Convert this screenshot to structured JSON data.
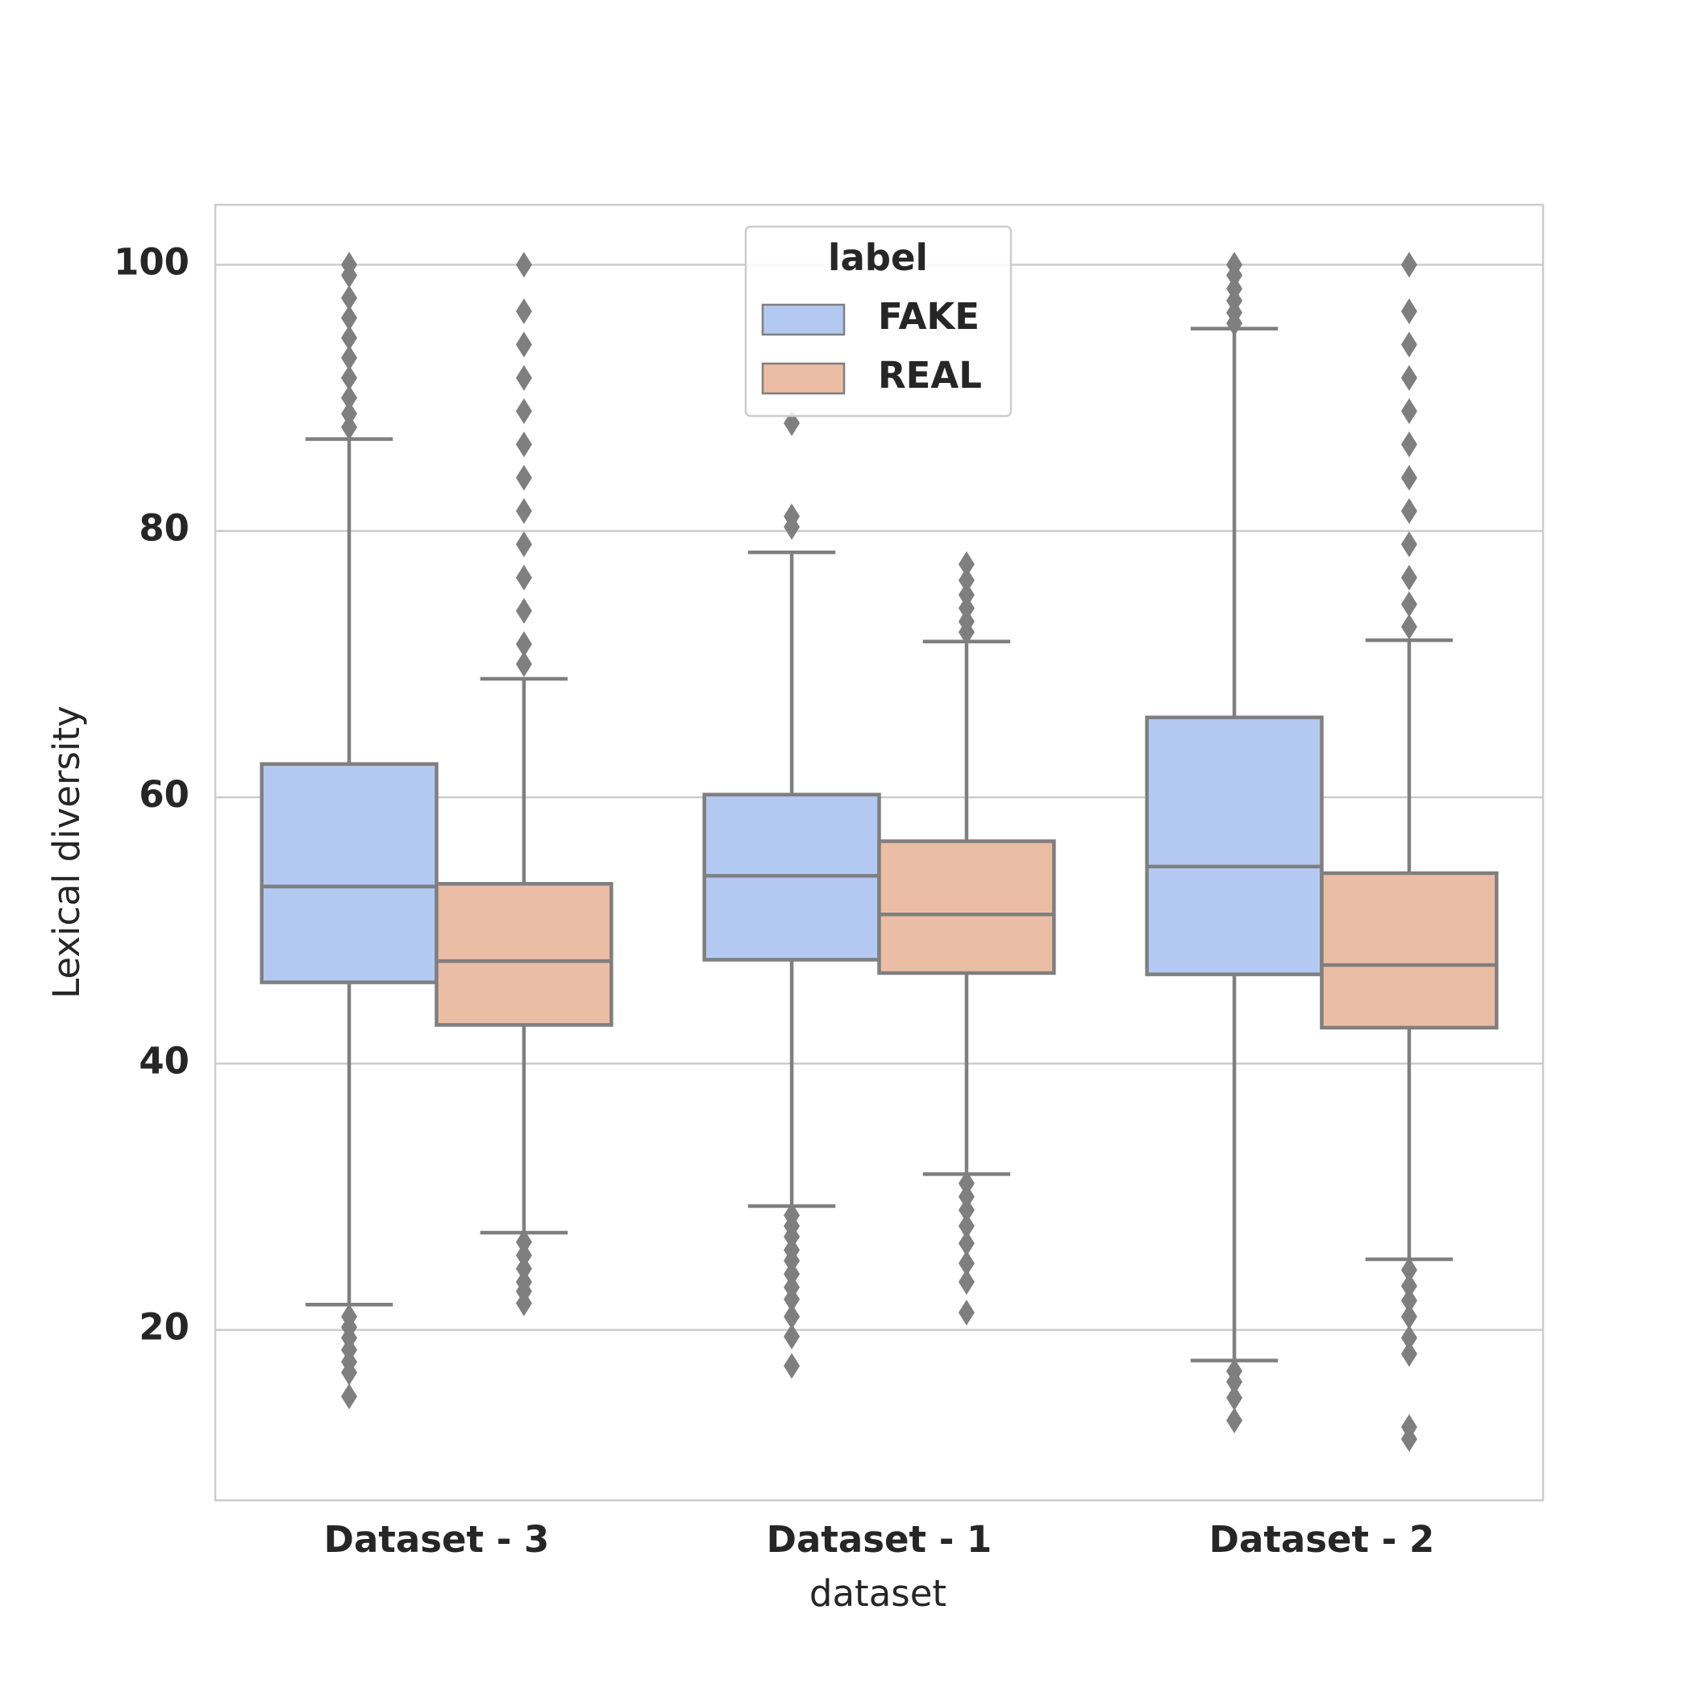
{
  "chart_data": {
    "type": "box",
    "x_label": "dataset",
    "y_label": "Lexical diversity",
    "categories": [
      "Dataset - 3",
      "Dataset - 1",
      "Dataset - 2"
    ],
    "legend_title": "label",
    "legend_position": "upper center",
    "ylim": [
      7.2,
      104.5
    ],
    "yticks": [
      20,
      40,
      60,
      80,
      100
    ],
    "grid": true,
    "edge_color": "#7f7f7f",
    "flier_color": "#7f7f7f",
    "series": [
      {
        "name": "FAKE",
        "color": "#b3c9f2",
        "boxes": [
          {
            "whislo": 21.9,
            "q1": 46.1,
            "med": 53.3,
            "q3": 62.5,
            "whishi": 86.9,
            "fliers": [
              100,
              99.2,
              97.5,
              96,
              94.5,
              93,
              91.5,
              90,
              88.8,
              87.8,
              21,
              20.2,
              19.4,
              18.5,
              17.6,
              16.8,
              15
            ]
          },
          {
            "whislo": 29.3,
            "q1": 47.8,
            "med": 54.1,
            "q3": 60.2,
            "whishi": 78.4,
            "fliers": [
              88.1,
              81.1,
              80.3,
              28.6,
              27.8,
              27,
              26,
              25.2,
              24.2,
              23.2,
              22.3,
              21,
              19.5,
              17.3
            ]
          },
          {
            "whislo": 17.7,
            "q1": 46.7,
            "med": 54.8,
            "q3": 66.0,
            "whishi": 95.2,
            "fliers": [
              100,
              99.2,
              98.2,
              97.3,
              96.4,
              95.6,
              16.9,
              16.1,
              14.9,
              13.2
            ]
          }
        ]
      },
      {
        "name": "REAL",
        "color": "#ecbda5",
        "boxes": [
          {
            "whislo": 27.3,
            "q1": 42.9,
            "med": 47.7,
            "q3": 53.5,
            "whishi": 68.9,
            "fliers": [
              100,
              96.5,
              94,
              91.5,
              89,
              86.5,
              84,
              81.5,
              79,
              76.5,
              74,
              71.5,
              70,
              26.6,
              25.6,
              24.6,
              23.6,
              22.9,
              22
            ]
          },
          {
            "whislo": 31.7,
            "q1": 46.8,
            "med": 51.2,
            "q3": 56.7,
            "whishi": 71.7,
            "fliers": [
              77.5,
              76.3,
              75.2,
              74.2,
              73.2,
              72.4,
              31,
              30,
              29,
              27.8,
              26.5,
              25,
              23.6,
              21.3
            ]
          },
          {
            "whislo": 25.3,
            "q1": 42.7,
            "med": 47.4,
            "q3": 54.3,
            "whishi": 71.8,
            "fliers": [
              100,
              96.5,
              94,
              91.5,
              89,
              86.5,
              84,
              81.5,
              79,
              76.5,
              74.5,
              72.8,
              24.5,
              23.3,
              22.2,
              21,
              19.4,
              18.2,
              12.7,
              11.8
            ]
          }
        ]
      }
    ]
  }
}
